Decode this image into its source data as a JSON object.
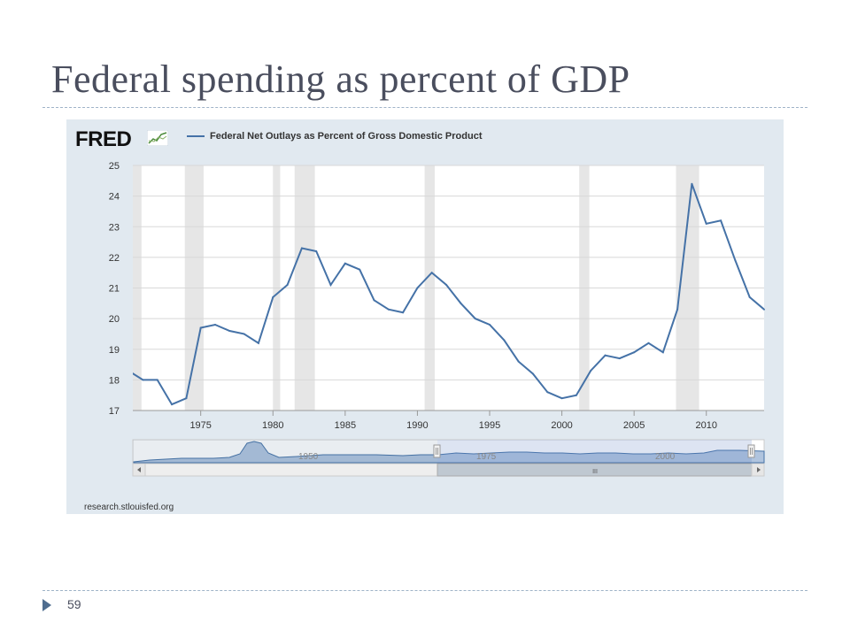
{
  "slide": {
    "title": "Federal spending as percent of GDP",
    "page_number": "59"
  },
  "fred": {
    "logo_text": "FRED",
    "source": "research.stlouisfed.org"
  },
  "navigator": {
    "labels": [
      "1950",
      "1975",
      "2000"
    ],
    "scroll_grip": "III"
  },
  "colors": {
    "series": "#4572a7",
    "recession": "#e6e6e6",
    "panel": "#e1e9f0"
  },
  "chart_data": {
    "type": "line",
    "title": "",
    "xlabel": "",
    "ylabel": "",
    "xlim": [
      1970.3,
      2014
    ],
    "ylim": [
      17,
      25
    ],
    "yticks": [
      17,
      18,
      19,
      20,
      21,
      22,
      23,
      24,
      25
    ],
    "xticks": [
      1975,
      1980,
      1985,
      1990,
      1995,
      2000,
      2005,
      2010
    ],
    "grid": true,
    "legend_position": "top",
    "recessions": [
      [
        1970,
        1970.9
      ],
      [
        1973.9,
        1975.2
      ],
      [
        1980,
        1980.5
      ],
      [
        1981.5,
        1982.9
      ],
      [
        1990.5,
        1991.2
      ],
      [
        2001.2,
        2001.9
      ],
      [
        2007.9,
        2009.5
      ]
    ],
    "series": [
      {
        "name": "Federal Net Outlays as Percent of Gross Domestic Product",
        "x": [
          1970,
          1971,
          1972,
          1973,
          1974,
          1975,
          1976,
          1977,
          1978,
          1979,
          1980,
          1981,
          1982,
          1983,
          1984,
          1985,
          1986,
          1987,
          1988,
          1989,
          1990,
          1991,
          1992,
          1993,
          1994,
          1995,
          1996,
          1997,
          1998,
          1999,
          2000,
          2001,
          2002,
          2003,
          2004,
          2005,
          2006,
          2007,
          2008,
          2009,
          2010,
          2011,
          2012,
          2013,
          2014
        ],
        "values": [
          18.3,
          18.0,
          18.0,
          17.2,
          17.4,
          19.7,
          19.8,
          19.6,
          19.5,
          19.2,
          20.7,
          21.1,
          22.3,
          22.2,
          21.1,
          21.8,
          21.6,
          20.6,
          20.3,
          20.2,
          21.0,
          21.5,
          21.1,
          20.5,
          20.0,
          19.8,
          19.3,
          18.6,
          18.2,
          17.6,
          17.4,
          17.5,
          18.3,
          18.8,
          18.7,
          18.9,
          19.2,
          18.9,
          20.3,
          24.4,
          23.1,
          23.2,
          21.9,
          20.7,
          20.3
        ]
      }
    ]
  }
}
